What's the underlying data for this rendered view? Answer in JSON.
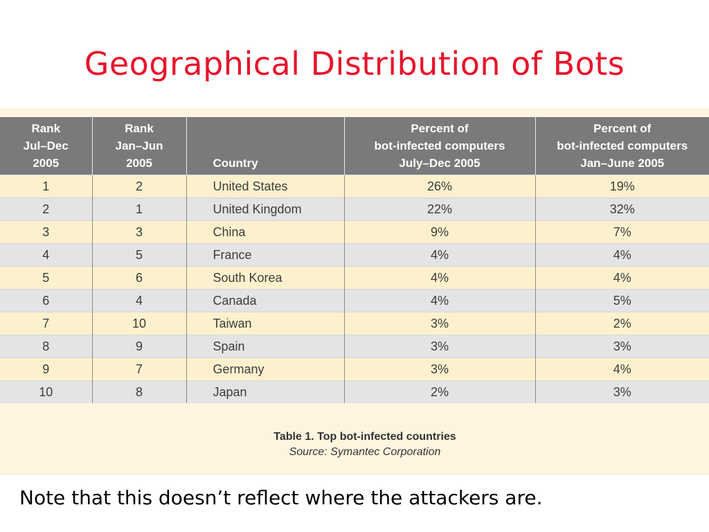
{
  "slide": {
    "title": "Geographical Distribution of Bots",
    "note": "Note that this doesn’t reflect where the attackers are."
  },
  "table": {
    "headers": [
      "Rank\nJul–Dec\n2005",
      "Rank\nJan–Jun\n2005",
      "Country",
      "Percent of\nbot-infected computers\nJuly–Dec 2005",
      "Percent of\nbot-infected computers\nJan–June 2005"
    ],
    "rows": [
      [
        "1",
        "2",
        "United States",
        "26%",
        "19%"
      ],
      [
        "2",
        "1",
        "United Kingdom",
        "22%",
        "32%"
      ],
      [
        "3",
        "3",
        "China",
        "9%",
        "7%"
      ],
      [
        "4",
        "5",
        "France",
        "4%",
        "4%"
      ],
      [
        "5",
        "6",
        "South Korea",
        "4%",
        "4%"
      ],
      [
        "6",
        "4",
        "Canada",
        "4%",
        "5%"
      ],
      [
        "7",
        "10",
        "Taiwan",
        "3%",
        "2%"
      ],
      [
        "8",
        "9",
        "Spain",
        "3%",
        "3%"
      ],
      [
        "9",
        "7",
        "Germany",
        "3%",
        "4%"
      ],
      [
        "10",
        "8",
        "Japan",
        "2%",
        "3%"
      ]
    ],
    "caption": "Table 1. Top bot-infected countries",
    "source": "Source: Symantec Corporation"
  },
  "colors": {
    "title": "#e8132b",
    "header_bg": "#7a7a7c",
    "row_odd": "#fdf1cd",
    "row_even": "#e4e3e5",
    "figure_bg": "#fdf5df"
  }
}
